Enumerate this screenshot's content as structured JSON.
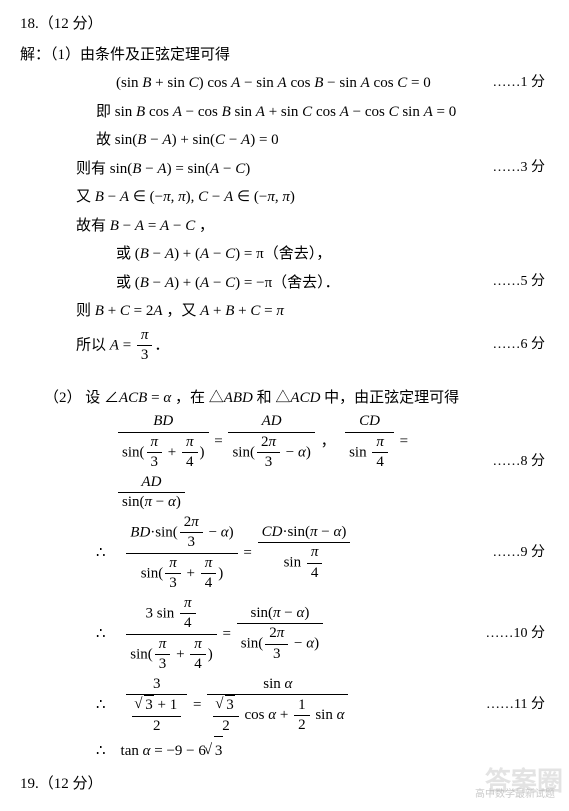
{
  "q18_header": "18.（12 分）",
  "line_intro": "解：（1）由条件及正弦定理可得",
  "eq1": "(sin <i>B</i> + sin <i>C</i>) cos <i>A</i> − sin <i>A</i> cos <i>B</i> − sin <i>A</i> cos <i>C</i> = 0",
  "score1": "……1 分",
  "eq2_prefix": "即 ",
  "eq2": "sin <i>B</i> cos <i>A</i> − cos <i>B</i> sin <i>A</i> + sin <i>C</i> cos <i>A</i> − cos <i>C</i> sin <i>A</i> = 0",
  "eq3_prefix": "故  ",
  "eq3": "sin(<i>B</i> − <i>A</i>) + sin(<i>C</i> − <i>A</i>) = 0",
  "eq4_prefix": "则有  ",
  "eq4": "sin(<i>B</i> − <i>A</i>) = sin(<i>A</i> − <i>C</i>)",
  "score3": "……3 分",
  "eq5_prefix": "又 ",
  "eq5": "<i>B</i> − <i>A</i> ∈ (−<i>π</i>, <i>π</i>), <i>C</i> − <i>A</i> ∈ (−<i>π</i>, <i>π</i>)",
  "eq6": "故有 <i>B</i> − <i>A</i> = <i>A</i> − <i>C</i> ，",
  "eq7": "或 (<i>B</i> − <i>A</i>) + (<i>A</i> − <i>C</i>) = π（舍去），",
  "eq8": "或 (<i>B</i> − <i>A</i>) + (<i>A</i> − <i>C</i>) = −π（舍去）．",
  "score5": "……5 分",
  "eq9": "则 <i>B</i> + <i>C</i> = 2<i>A</i> ，又 <i>A</i> + <i>B</i> + <i>C</i> = <i>π</i>",
  "eq10_prefix": "所以 ",
  "score6": "……6 分",
  "part2_intro": "（2）  设 ∠<i>ACB</i> = <i>α</i> ，在 △<i>ABD</i> 和 △<i>ACD</i> 中，由正弦定理可得",
  "score8": "……8 分",
  "score9": "……9 分",
  "score10": "……10 分",
  "score11": "……11 分",
  "eq_final": "∴　tan <i>α</i> = −9 − 6<span class=\"sqrt\"><span>3</span></span>",
  "q19_header": "19.（12 分）",
  "watermark": "答案圈",
  "subwatermark": "高中数学最新试题"
}
